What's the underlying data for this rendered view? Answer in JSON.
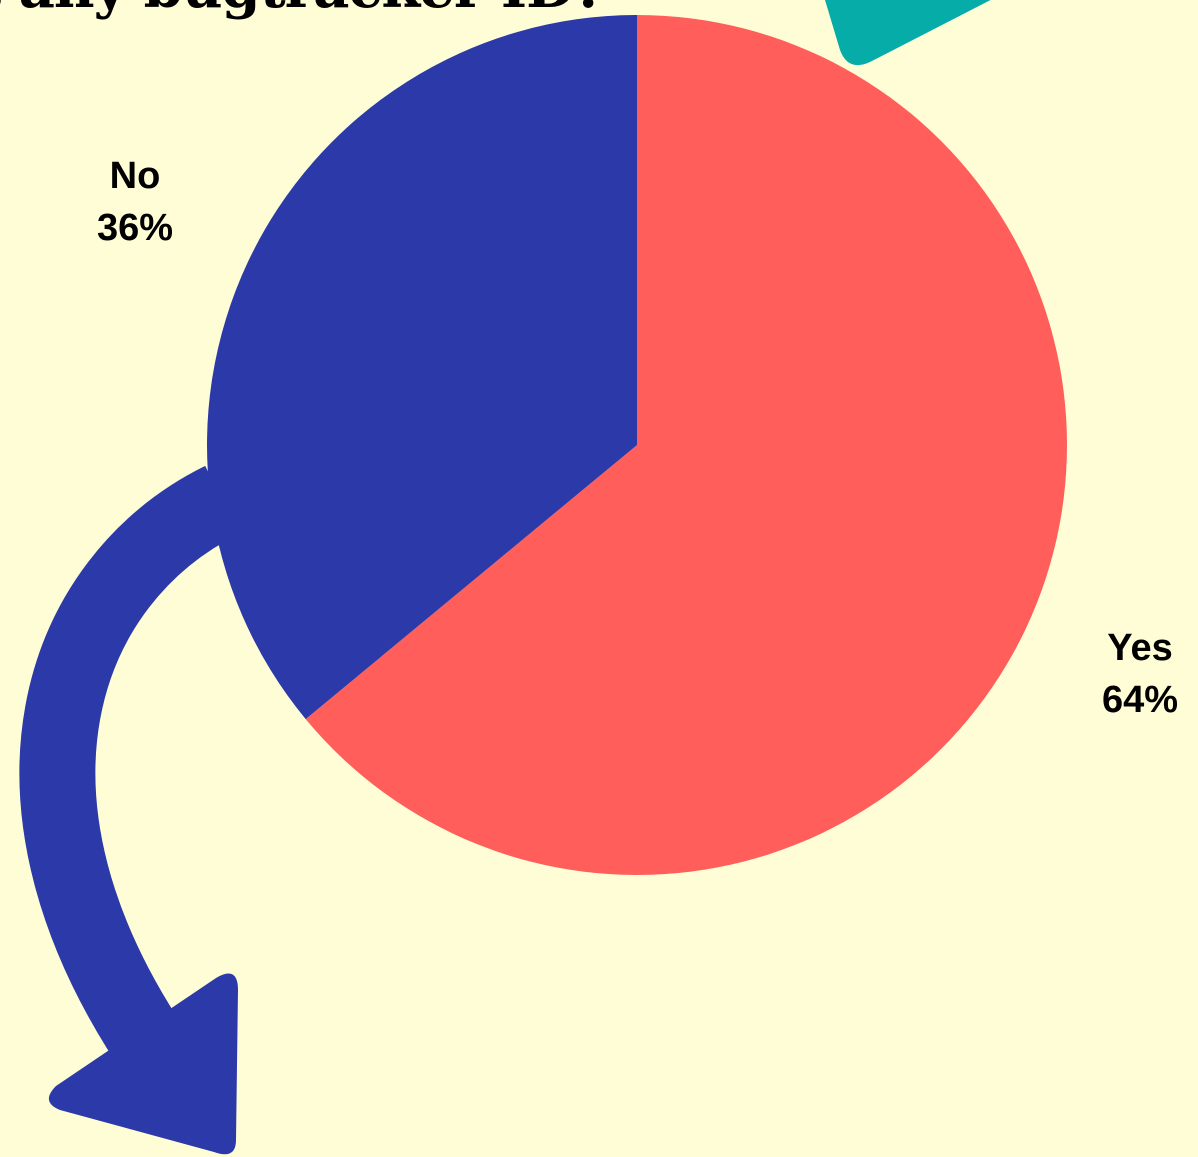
{
  "title": "at any bugtracker ID?",
  "colors": {
    "background": "#FFFDD6",
    "yes": "#FF5E5B",
    "no": "#2B3AA8",
    "teal_decoration": "#06ADA8",
    "blue_arrow": "#2B3AA8"
  },
  "decorations": {
    "arrow_icon": "curved-arrow-down-icon",
    "teal_shape": "teal-arrow-shape-icon"
  },
  "chart_data": {
    "type": "pie",
    "title": "at any bugtracker ID?",
    "categories": [
      "Yes",
      "No"
    ],
    "values": [
      64,
      36
    ],
    "labels": [
      {
        "name": "Yes",
        "percent": "64%"
      },
      {
        "name": "No",
        "percent": "36%"
      }
    ],
    "legend": "none"
  }
}
